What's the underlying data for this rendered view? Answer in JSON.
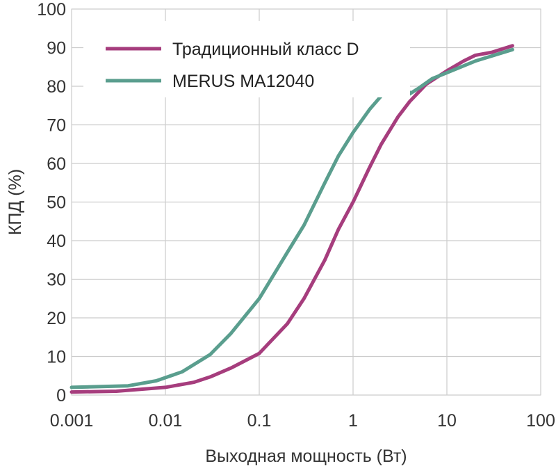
{
  "chart_data": {
    "type": "line",
    "title": "",
    "xlabel": "Выходная мощность (Вт)",
    "ylabel": "КПД (%)",
    "x_scale": "log",
    "xlim": [
      0.001,
      100
    ],
    "ylim": [
      0,
      100
    ],
    "x_ticks": [
      0.001,
      0.01,
      0.1,
      1,
      10,
      100
    ],
    "x_tick_labels": [
      "0.001",
      "0.01",
      "0.1",
      "1",
      "10",
      "100"
    ],
    "y_ticks": [
      0,
      10,
      20,
      30,
      40,
      50,
      60,
      70,
      80,
      90,
      100
    ],
    "y_tick_labels": [
      "0",
      "10",
      "20",
      "30",
      "40",
      "50",
      "60",
      "70",
      "80",
      "90",
      "100"
    ],
    "grid": true,
    "legend_position": "top-left",
    "series": [
      {
        "name": "Традиционный класс D",
        "color": "#a63d7d",
        "x": [
          0.001,
          0.003,
          0.01,
          0.02,
          0.03,
          0.05,
          0.1,
          0.2,
          0.3,
          0.5,
          0.7,
          1,
          1.5,
          2,
          3,
          4,
          6,
          10,
          15,
          20,
          30,
          50
        ],
        "y": [
          0.8,
          1.0,
          2.0,
          3.3,
          4.7,
          7.0,
          10.8,
          18.5,
          25,
          35,
          43,
          50,
          59,
          65,
          72,
          76,
          80.5,
          84,
          86.5,
          88,
          88.8,
          90.5
        ]
      },
      {
        "name": "MERUS MA12040",
        "color": "#5a9e8e",
        "x": [
          0.001,
          0.004,
          0.008,
          0.015,
          0.03,
          0.05,
          0.1,
          0.2,
          0.3,
          0.5,
          0.7,
          1,
          1.5,
          2,
          3,
          3.5,
          4,
          5,
          7,
          10,
          20,
          50
        ],
        "y": [
          2.0,
          2.4,
          3.7,
          6.0,
          10.5,
          16,
          25,
          37,
          44,
          55,
          62,
          68,
          74,
          77.5,
          81,
          82.5,
          78,
          79.5,
          82,
          83.5,
          86.5,
          89.5
        ]
      }
    ]
  }
}
